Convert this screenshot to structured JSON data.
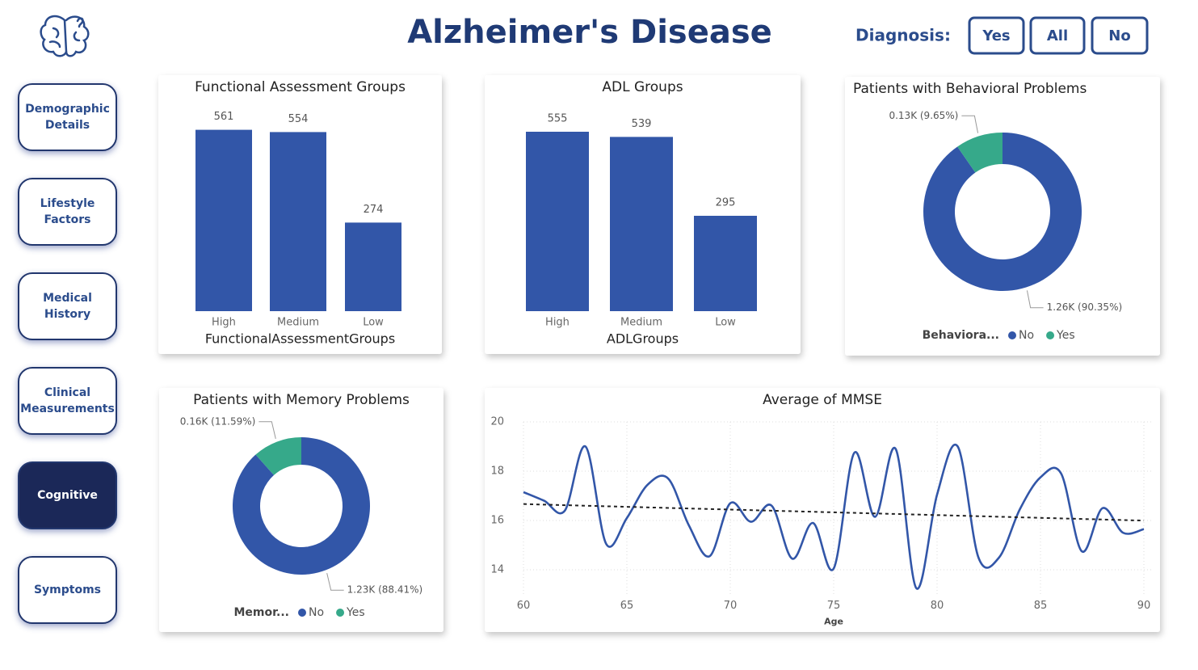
{
  "header": {
    "title": "Alzheimer's Disease",
    "filter_label": "Diagnosis:",
    "filter_buttons": [
      "Yes",
      "All",
      "No"
    ]
  },
  "nav": {
    "items": [
      "Demographic Details",
      "Lifestyle Factors",
      "Medical History",
      "Clinical Measurements",
      "Cognitive",
      "Symptoms"
    ],
    "active": 4
  },
  "chart_data": [
    {
      "type": "bar",
      "title": "Functional Assessment Groups",
      "x_label": "FunctionalAssessmentGroups",
      "categories": [
        "High",
        "Medium",
        "Low"
      ],
      "values": [
        561,
        554,
        274
      ],
      "color": "#3256a8",
      "ylim": [
        0,
        600
      ]
    },
    {
      "type": "bar",
      "title": "ADL Groups",
      "x_label": "ADLGroups",
      "categories": [
        "High",
        "Medium",
        "Low"
      ],
      "values": [
        555,
        539,
        295
      ],
      "color": "#3256a8",
      "ylim": [
        0,
        600
      ]
    },
    {
      "type": "pie",
      "title": "Patients with Behavioral Problems",
      "legend_title": "Behaviora...",
      "categories": [
        "No",
        "Yes"
      ],
      "values": [
        90.35,
        9.65
      ],
      "value_labels": [
        "1.26K (90.35%)",
        "0.13K (9.65%)"
      ],
      "colors": [
        "#3256a8",
        "#36a98a"
      ],
      "donut": true
    },
    {
      "type": "pie",
      "title": "Patients with Memory Problems",
      "legend_title": "Memor...",
      "categories": [
        "No",
        "Yes"
      ],
      "values": [
        88.41,
        11.59
      ],
      "value_labels": [
        "1.23K (88.41%)",
        "0.16K (11.59%)"
      ],
      "colors": [
        "#3256a8",
        "#36a98a"
      ],
      "donut": true
    },
    {
      "type": "line",
      "title": "Average of MMSE",
      "x_label": "Age",
      "x": [
        60,
        61,
        62,
        63,
        64,
        65,
        66,
        67,
        68,
        69,
        70,
        71,
        72,
        73,
        74,
        75,
        76,
        77,
        78,
        79,
        80,
        81,
        82,
        83,
        84,
        85,
        86,
        87,
        88,
        89,
        90
      ],
      "series": [
        {
          "name": "Average of MMSE",
          "color": "#3256a8",
          "values": [
            17.15,
            16.8,
            16.4,
            19.0,
            15.05,
            16.1,
            17.45,
            17.7,
            15.8,
            14.55,
            16.7,
            15.95,
            16.6,
            14.45,
            15.9,
            14.05,
            18.75,
            16.15,
            18.9,
            13.25,
            17.05,
            19.0,
            14.5,
            14.5,
            16.45,
            17.75,
            17.9,
            14.75,
            16.5,
            15.5,
            15.65
          ]
        }
      ],
      "xlim": [
        60,
        90
      ],
      "xticks": [
        60,
        65,
        70,
        75,
        80,
        85,
        90
      ],
      "ylim": [
        13,
        20
      ],
      "yticks": [
        14,
        16,
        18,
        20
      ],
      "grid": true,
      "trendline": true
    }
  ]
}
